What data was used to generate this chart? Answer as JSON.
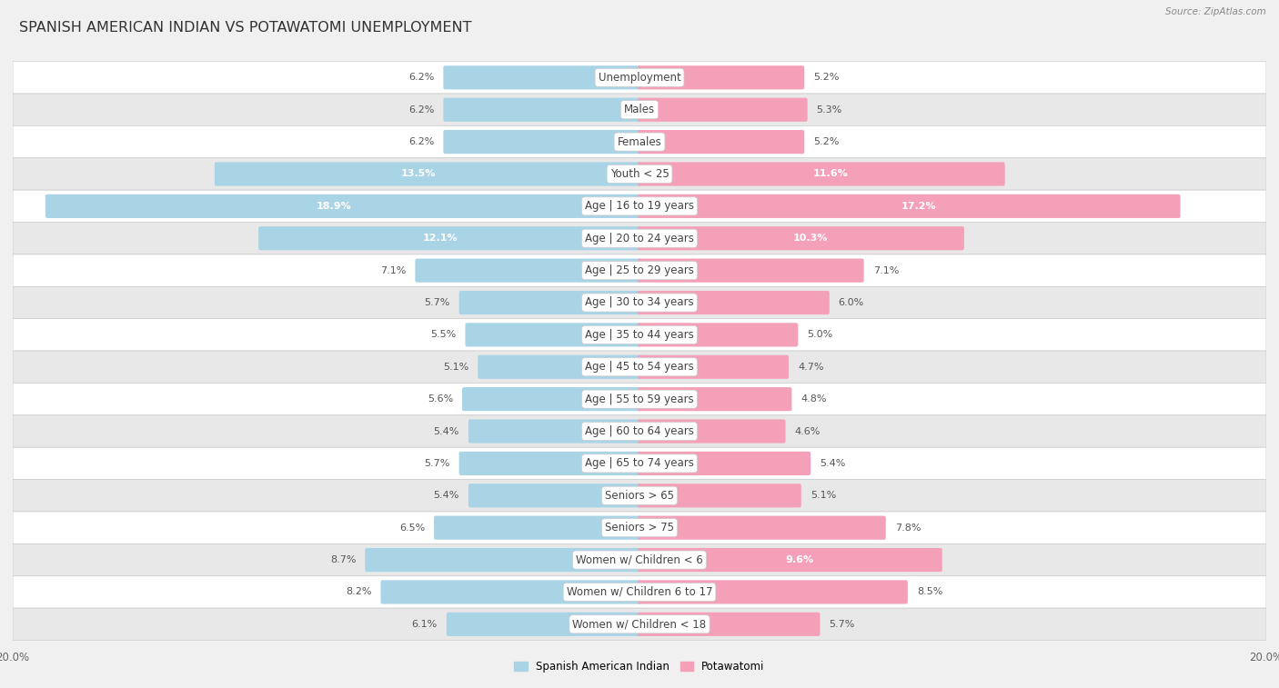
{
  "title": "SPANISH AMERICAN INDIAN VS POTAWATOMI UNEMPLOYMENT",
  "source": "Source: ZipAtlas.com",
  "categories": [
    "Unemployment",
    "Males",
    "Females",
    "Youth < 25",
    "Age | 16 to 19 years",
    "Age | 20 to 24 years",
    "Age | 25 to 29 years",
    "Age | 30 to 34 years",
    "Age | 35 to 44 years",
    "Age | 45 to 54 years",
    "Age | 55 to 59 years",
    "Age | 60 to 64 years",
    "Age | 65 to 74 years",
    "Seniors > 65",
    "Seniors > 75",
    "Women w/ Children < 6",
    "Women w/ Children 6 to 17",
    "Women w/ Children < 18"
  ],
  "left_values": [
    6.2,
    6.2,
    6.2,
    13.5,
    18.9,
    12.1,
    7.1,
    5.7,
    5.5,
    5.1,
    5.6,
    5.4,
    5.7,
    5.4,
    6.5,
    8.7,
    8.2,
    6.1
  ],
  "right_values": [
    5.2,
    5.3,
    5.2,
    11.6,
    17.2,
    10.3,
    7.1,
    6.0,
    5.0,
    4.7,
    4.8,
    4.6,
    5.4,
    5.1,
    7.8,
    9.6,
    8.5,
    5.7
  ],
  "left_color": "#a8d4e6",
  "right_color": "#f4a0b8",
  "left_label": "Spanish American Indian",
  "right_label": "Potawatomi",
  "max_val": 20.0,
  "bg_color": "#f0f0f0",
  "row_white": "#ffffff",
  "row_gray": "#e8e8e8",
  "title_fontsize": 11.5,
  "label_fontsize": 8.5,
  "value_fontsize": 8.0,
  "axis_label_fontsize": 8.5,
  "source_fontsize": 7.5
}
